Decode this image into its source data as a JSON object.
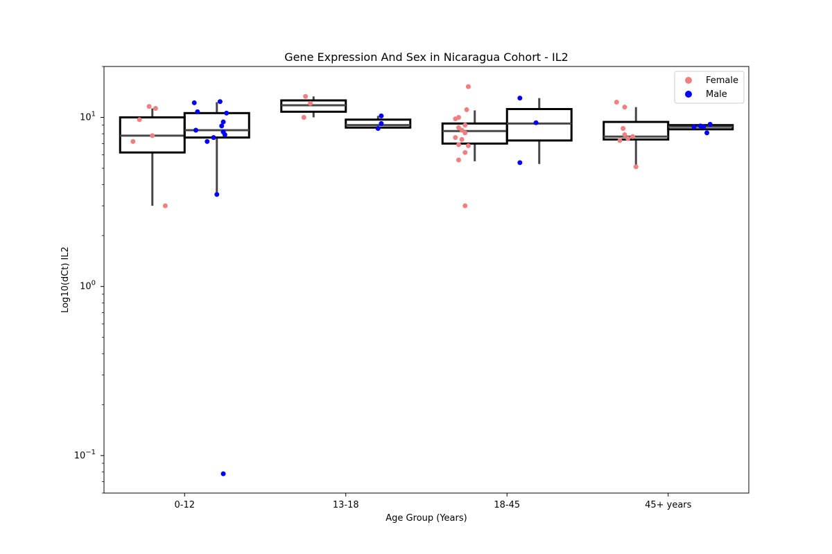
{
  "chart_data": {
    "type": "box",
    "title": "Gene Expression And Sex in Nicaragua Cohort - IL2",
    "xlabel": "Age Group (Years)",
    "ylabel": "Log10(dCt) IL2",
    "yscale": "log",
    "ylim": [
      0.06,
      20
    ],
    "y_ticks": [
      {
        "value": 0.1,
        "base": "10",
        "exp": "−1"
      },
      {
        "value": 1,
        "base": "10",
        "exp": "0"
      },
      {
        "value": 10,
        "base": "10",
        "exp": "1"
      }
    ],
    "categories": [
      "0-12",
      "13-18",
      "18-45",
      "45+ years"
    ],
    "legend": {
      "position": "top-right",
      "entries": [
        {
          "name": "Female",
          "color": "#f08080"
        },
        {
          "name": "Male",
          "color": "#0000ff"
        }
      ]
    },
    "series": [
      {
        "name": "Female",
        "color": "#f08080",
        "boxes": [
          {
            "q1": 6.2,
            "median": 7.8,
            "q3": 10.0,
            "whisker_low": 3.0,
            "whisker_high": 11.3
          },
          {
            "q1": 10.8,
            "median": 11.8,
            "q3": 12.6,
            "whisker_low": 10.0,
            "whisker_high": 13.3
          },
          {
            "q1": 7.0,
            "median": 8.3,
            "q3": 9.2,
            "whisker_low": 5.5,
            "whisker_high": 11.0
          },
          {
            "q1": 7.4,
            "median": 7.7,
            "q3": 9.4,
            "whisker_low": 5.0,
            "whisker_high": 11.5
          }
        ],
        "points": [
          {
            "cat": 0,
            "j": -0.02,
            "y": 11.6
          },
          {
            "cat": 0,
            "j": 0.02,
            "y": 11.3
          },
          {
            "cat": 0,
            "j": -0.08,
            "y": 9.7
          },
          {
            "cat": 0,
            "j": 0.0,
            "y": 7.8
          },
          {
            "cat": 0,
            "j": -0.12,
            "y": 7.2
          },
          {
            "cat": 0,
            "j": 0.08,
            "y": 3.0
          },
          {
            "cat": 1,
            "j": -0.05,
            "y": 13.3
          },
          {
            "cat": 1,
            "j": -0.02,
            "y": 12.1
          },
          {
            "cat": 1,
            "j": -0.06,
            "y": 10.0
          },
          {
            "cat": 2,
            "j": -0.04,
            "y": 15.2
          },
          {
            "cat": 2,
            "j": -0.05,
            "y": 11.1
          },
          {
            "cat": 2,
            "j": -0.1,
            "y": 10.0
          },
          {
            "cat": 2,
            "j": -0.12,
            "y": 9.8
          },
          {
            "cat": 2,
            "j": -0.06,
            "y": 9.0
          },
          {
            "cat": 2,
            "j": -0.1,
            "y": 8.7
          },
          {
            "cat": 2,
            "j": -0.08,
            "y": 8.4
          },
          {
            "cat": 2,
            "j": -0.06,
            "y": 8.1
          },
          {
            "cat": 2,
            "j": -0.12,
            "y": 7.6
          },
          {
            "cat": 2,
            "j": -0.08,
            "y": 7.4
          },
          {
            "cat": 2,
            "j": -0.1,
            "y": 6.9
          },
          {
            "cat": 2,
            "j": -0.04,
            "y": 6.8
          },
          {
            "cat": 2,
            "j": -0.06,
            "y": 6.2
          },
          {
            "cat": 2,
            "j": -0.1,
            "y": 5.6
          },
          {
            "cat": 2,
            "j": -0.06,
            "y": 3.0
          },
          {
            "cat": 3,
            "j": -0.12,
            "y": 12.3
          },
          {
            "cat": 3,
            "j": -0.07,
            "y": 11.5
          },
          {
            "cat": 3,
            "j": -0.08,
            "y": 8.6
          },
          {
            "cat": 3,
            "j": -0.07,
            "y": 7.9
          },
          {
            "cat": 3,
            "j": -0.02,
            "y": 7.7
          },
          {
            "cat": 3,
            "j": -0.05,
            "y": 7.5
          },
          {
            "cat": 3,
            "j": -0.1,
            "y": 7.3
          },
          {
            "cat": 3,
            "j": 0.0,
            "y": 5.1
          }
        ]
      },
      {
        "name": "Male",
        "color": "#0000ff",
        "boxes": [
          {
            "q1": 7.6,
            "median": 8.4,
            "q3": 10.6,
            "whisker_low": 3.5,
            "whisker_high": 12.3
          },
          {
            "q1": 8.7,
            "median": 9.0,
            "q3": 9.7,
            "whisker_low": 8.5,
            "whisker_high": 10.2
          },
          {
            "q1": 7.3,
            "median": 9.2,
            "q3": 11.2,
            "whisker_low": 5.3,
            "whisker_high": 13.0
          },
          {
            "q1": 8.5,
            "median": 8.8,
            "q3": 9.0,
            "whisker_low": 8.5,
            "whisker_high": 9.0
          }
        ],
        "points": [
          {
            "cat": 0,
            "j": -0.14,
            "y": 12.2
          },
          {
            "cat": 0,
            "j": 0.02,
            "y": 12.4
          },
          {
            "cat": 0,
            "j": 0.06,
            "y": 10.6
          },
          {
            "cat": 0,
            "j": -0.12,
            "y": 10.8
          },
          {
            "cat": 0,
            "j": 0.04,
            "y": 9.4
          },
          {
            "cat": 0,
            "j": 0.03,
            "y": 8.9
          },
          {
            "cat": 0,
            "j": -0.13,
            "y": 8.4
          },
          {
            "cat": 0,
            "j": 0.04,
            "y": 8.2
          },
          {
            "cat": 0,
            "j": 0.05,
            "y": 7.9
          },
          {
            "cat": 0,
            "j": -0.02,
            "y": 7.6
          },
          {
            "cat": 0,
            "j": -0.06,
            "y": 7.2
          },
          {
            "cat": 0,
            "j": 0.0,
            "y": 3.5
          },
          {
            "cat": 0,
            "j": 0.04,
            "y": 0.078
          },
          {
            "cat": 1,
            "j": 0.02,
            "y": 10.2
          },
          {
            "cat": 1,
            "j": 0.02,
            "y": 9.2
          },
          {
            "cat": 1,
            "j": 0.0,
            "y": 8.6
          },
          {
            "cat": 2,
            "j": -0.12,
            "y": 13.0
          },
          {
            "cat": 2,
            "j": -0.02,
            "y": 9.3
          },
          {
            "cat": 2,
            "j": -0.12,
            "y": 5.4
          },
          {
            "cat": 3,
            "j": 0.06,
            "y": 9.1
          },
          {
            "cat": 3,
            "j": 0.0,
            "y": 8.9
          },
          {
            "cat": 3,
            "j": 0.02,
            "y": 8.8
          },
          {
            "cat": 3,
            "j": -0.04,
            "y": 8.8
          },
          {
            "cat": 3,
            "j": 0.04,
            "y": 8.1
          }
        ]
      }
    ]
  },
  "colors": {
    "box_edge": "#000000",
    "whisker": "#474747",
    "median": "#474747",
    "background": "#ffffff"
  }
}
